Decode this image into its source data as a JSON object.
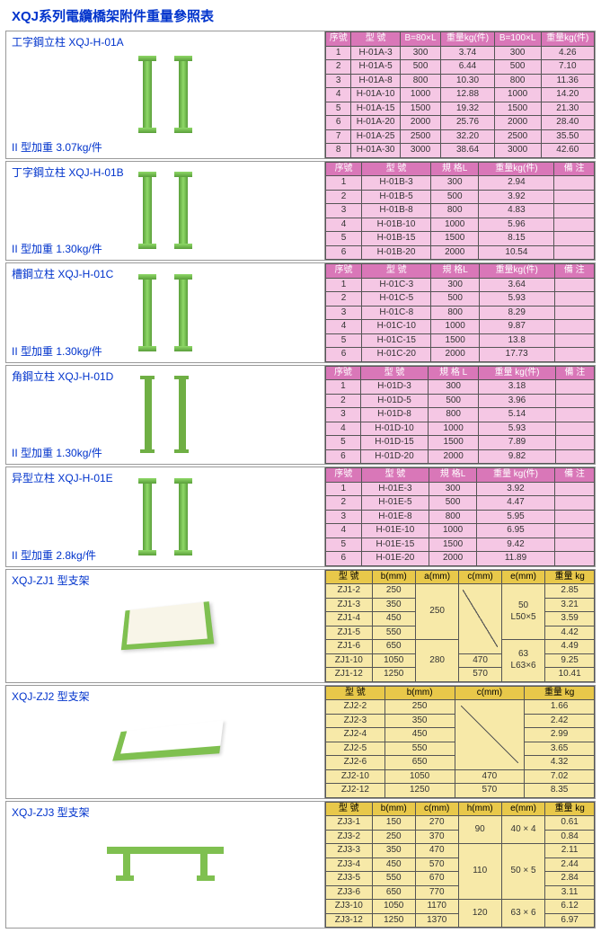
{
  "page_title": "XQJ系列電纜橋架附件重量參照表",
  "colors": {
    "title": "#0033cc",
    "pink_header": "#d977b8",
    "pink_cell": "#f5c7e4",
    "yellow_header": "#e8c84a",
    "yellow_cell": "#f7e9a8",
    "border": "#555555",
    "accent_green": "#7fc050"
  },
  "s1": {
    "name": "工字鋼立柱 XQJ-H-01A",
    "weight": "II 型加重 3.07kg/件",
    "hdr": {
      "c1": "序號",
      "c2": "型 號",
      "c3": "B=80×L",
      "c4": "重量kg(件)",
      "c5": "B=100×L",
      "c6": "重量kg(件)"
    },
    "rows": [
      {
        "n": "1",
        "m": "H-01A-3",
        "a": "300",
        "b": "3.74",
        "c": "300",
        "d": "4.26"
      },
      {
        "n": "2",
        "m": "H-01A-5",
        "a": "500",
        "b": "6.44",
        "c": "500",
        "d": "7.10"
      },
      {
        "n": "3",
        "m": "H-01A-8",
        "a": "800",
        "b": "10.30",
        "c": "800",
        "d": "11.36"
      },
      {
        "n": "4",
        "m": "H-01A-10",
        "a": "1000",
        "b": "12.88",
        "c": "1000",
        "d": "14.20"
      },
      {
        "n": "5",
        "m": "H-01A-15",
        "a": "1500",
        "b": "19.32",
        "c": "1500",
        "d": "21.30"
      },
      {
        "n": "6",
        "m": "H-01A-20",
        "a": "2000",
        "b": "25.76",
        "c": "2000",
        "d": "28.40"
      },
      {
        "n": "7",
        "m": "H-01A-25",
        "a": "2500",
        "b": "32.20",
        "c": "2500",
        "d": "35.50"
      },
      {
        "n": "8",
        "m": "H-01A-30",
        "a": "3000",
        "b": "38.64",
        "c": "3000",
        "d": "42.60"
      }
    ]
  },
  "s2": {
    "name": "丁字鋼立柱 XQJ-H-01B",
    "weight": "II 型加重 1.30kg/件",
    "hdr": {
      "c1": "序號",
      "c2": "型 號",
      "c3": "規 格L",
      "c4": "重量kg(件)",
      "c5": "備 注"
    },
    "rows": [
      {
        "n": "1",
        "m": "H-01B-3",
        "a": "300",
        "b": "2.94",
        "c": ""
      },
      {
        "n": "2",
        "m": "H-01B-5",
        "a": "500",
        "b": "3.92",
        "c": ""
      },
      {
        "n": "3",
        "m": "H-01B-8",
        "a": "800",
        "b": "4.83",
        "c": ""
      },
      {
        "n": "4",
        "m": "H-01B-10",
        "a": "1000",
        "b": "5.96",
        "c": ""
      },
      {
        "n": "5",
        "m": "H-01B-15",
        "a": "1500",
        "b": "8.15",
        "c": ""
      },
      {
        "n": "6",
        "m": "H-01B-20",
        "a": "2000",
        "b": "10.54",
        "c": ""
      }
    ]
  },
  "s3": {
    "name": "槽鋼立柱 XQJ-H-01C",
    "weight": "II 型加重 1.30kg/件",
    "hdr": {
      "c1": "序號",
      "c2": "型 號",
      "c3": "規 格L",
      "c4": "重量kg(件)",
      "c5": "備 注"
    },
    "rows": [
      {
        "n": "1",
        "m": "H-01C-3",
        "a": "300",
        "b": "3.64",
        "c": ""
      },
      {
        "n": "2",
        "m": "H-01C-5",
        "a": "500",
        "b": "5.93",
        "c": ""
      },
      {
        "n": "3",
        "m": "H-01C-8",
        "a": "800",
        "b": "8.29",
        "c": ""
      },
      {
        "n": "4",
        "m": "H-01C-10",
        "a": "1000",
        "b": "9.87",
        "c": ""
      },
      {
        "n": "5",
        "m": "H-01C-15",
        "a": "1500",
        "b": "13.8",
        "c": ""
      },
      {
        "n": "6",
        "m": "H-01C-20",
        "a": "2000",
        "b": "17.73",
        "c": ""
      }
    ]
  },
  "s4": {
    "name": "角鋼立柱 XQJ-H-01D",
    "weight": "II 型加重 1.30kg/件",
    "hdr": {
      "c1": "序號",
      "c2": "型 號",
      "c3": "規 格 L",
      "c4": "重量 kg(件)",
      "c5": "備 注"
    },
    "rows": [
      {
        "n": "1",
        "m": "H-01D-3",
        "a": "300",
        "b": "3.18",
        "c": ""
      },
      {
        "n": "2",
        "m": "H-01D-5",
        "a": "500",
        "b": "3.96",
        "c": ""
      },
      {
        "n": "3",
        "m": "H-01D-8",
        "a": "800",
        "b": "5.14",
        "c": ""
      },
      {
        "n": "4",
        "m": "H-01D-10",
        "a": "1000",
        "b": "5.93",
        "c": ""
      },
      {
        "n": "5",
        "m": "H-01D-15",
        "a": "1500",
        "b": "7.89",
        "c": ""
      },
      {
        "n": "6",
        "m": "H-01D-20",
        "a": "2000",
        "b": "9.82",
        "c": ""
      }
    ]
  },
  "s5": {
    "name": "异型立柱 XQJ-H-01E",
    "weight": "II 型加重 2.8kg/件",
    "hdr": {
      "c1": "序號",
      "c2": "型 號",
      "c3": "規 格L",
      "c4": "重量 kg(件)",
      "c5": "備 注"
    },
    "rows": [
      {
        "n": "1",
        "m": "H-01E-3",
        "a": "300",
        "b": "3.92",
        "c": ""
      },
      {
        "n": "2",
        "m": "H-01E-5",
        "a": "500",
        "b": "4.47",
        "c": ""
      },
      {
        "n": "3",
        "m": "H-01E-8",
        "a": "800",
        "b": "5.95",
        "c": ""
      },
      {
        "n": "4",
        "m": "H-01E-10",
        "a": "1000",
        "b": "6.95",
        "c": ""
      },
      {
        "n": "5",
        "m": "H-01E-15",
        "a": "1500",
        "b": "9.42",
        "c": ""
      },
      {
        "n": "6",
        "m": "H-01E-20",
        "a": "2000",
        "b": "11.89",
        "c": ""
      }
    ]
  },
  "s6": {
    "name": "XQJ-ZJ1 型支架",
    "hdr": {
      "c1": "型 號",
      "c2": "b(mm)",
      "c3": "a(mm)",
      "c4": "c(mm)",
      "c5": "e(mm)",
      "c6": "重量 kg"
    },
    "a1": "250",
    "a2": "280",
    "e1": "50\nL50×5",
    "e2": "63\nL63×6",
    "c1": "470",
    "c2": "570",
    "rows": [
      {
        "m": "ZJ1-2",
        "b": "250",
        "w": "2.85"
      },
      {
        "m": "ZJ1-3",
        "b": "350",
        "w": "3.21"
      },
      {
        "m": "ZJ1-4",
        "b": "450",
        "w": "3.59"
      },
      {
        "m": "ZJ1-5",
        "b": "550",
        "w": "4.42"
      },
      {
        "m": "ZJ1-6",
        "b": "650",
        "w": "4.49"
      },
      {
        "m": "ZJ1-10",
        "b": "1050",
        "w": "9.25"
      },
      {
        "m": "ZJ1-12",
        "b": "1250",
        "w": "10.41"
      }
    ]
  },
  "s7": {
    "name": "XQJ-ZJ2 型支架",
    "hdr": {
      "c1": "型 號",
      "c2": "b(mm)",
      "c3": "c(mm)",
      "c4": "重量 kg"
    },
    "c1": "470",
    "c2": "570",
    "rows": [
      {
        "m": "ZJ2-2",
        "b": "250",
        "w": "1.66"
      },
      {
        "m": "ZJ2-3",
        "b": "350",
        "w": "2.42"
      },
      {
        "m": "ZJ2-4",
        "b": "450",
        "w": "2.99"
      },
      {
        "m": "ZJ2-5",
        "b": "550",
        "w": "3.65"
      },
      {
        "m": "ZJ2-6",
        "b": "650",
        "w": "4.32"
      },
      {
        "m": "ZJ2-10",
        "b": "1050",
        "w": "7.02"
      },
      {
        "m": "ZJ2-12",
        "b": "1250",
        "w": "8.35"
      }
    ]
  },
  "s8": {
    "name": "XQJ-ZJ3 型支架",
    "hdr": {
      "c1": "型 號",
      "c2": "b(mm)",
      "c3": "c(mm)",
      "c4": "h(mm)",
      "c5": "e(mm)",
      "c6": "重量 kg"
    },
    "h1": "90",
    "h2": "110",
    "h3": "120",
    "e1": "40 × 4",
    "e2": "50 × 5",
    "e3": "63 × 6",
    "rows": [
      {
        "m": "ZJ3-1",
        "b": "150",
        "c": "270",
        "w": "0.61"
      },
      {
        "m": "ZJ3-2",
        "b": "250",
        "c": "370",
        "w": "0.84"
      },
      {
        "m": "ZJ3-3",
        "b": "350",
        "c": "470",
        "w": "2.11"
      },
      {
        "m": "ZJ3-4",
        "b": "450",
        "c": "570",
        "w": "2.44"
      },
      {
        "m": "ZJ3-5",
        "b": "550",
        "c": "670",
        "w": "2.84"
      },
      {
        "m": "ZJ3-6",
        "b": "650",
        "c": "770",
        "w": "3.11"
      },
      {
        "m": "ZJ3-10",
        "b": "1050",
        "c": "1170",
        "w": "6.12"
      },
      {
        "m": "ZJ3-12",
        "b": "1250",
        "c": "1370",
        "w": "6.97"
      }
    ]
  }
}
